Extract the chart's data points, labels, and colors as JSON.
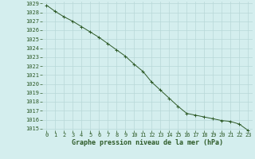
{
  "x": [
    0,
    1,
    2,
    3,
    4,
    5,
    6,
    7,
    8,
    9,
    10,
    11,
    12,
    13,
    14,
    15,
    16,
    17,
    18,
    19,
    20,
    21,
    22,
    23
  ],
  "y": [
    1028.8,
    1028.1,
    1027.5,
    1027.0,
    1026.4,
    1025.8,
    1025.2,
    1024.5,
    1023.8,
    1023.1,
    1022.2,
    1021.4,
    1020.2,
    1019.3,
    1018.4,
    1017.5,
    1016.7,
    1016.5,
    1016.3,
    1016.1,
    1015.9,
    1015.8,
    1015.5,
    1014.8
  ],
  "ylim": [
    1015,
    1029
  ],
  "xlim": [
    -0.5,
    23.5
  ],
  "yticks": [
    1015,
    1016,
    1017,
    1018,
    1019,
    1020,
    1021,
    1022,
    1023,
    1024,
    1025,
    1026,
    1027,
    1028,
    1029
  ],
  "xticks": [
    0,
    1,
    2,
    3,
    4,
    5,
    6,
    7,
    8,
    9,
    10,
    11,
    12,
    13,
    14,
    15,
    16,
    17,
    18,
    19,
    20,
    21,
    22,
    23
  ],
  "line_color": "#2d5a27",
  "marker": "+",
  "bg_color": "#d4eeee",
  "grid_color": "#b8d8d8",
  "xlabel": "Graphe pression niveau de la mer (hPa)",
  "xlabel_color": "#2d5a27",
  "tick_color": "#2d5a27",
  "label_fontsize": 6.0,
  "tick_fontsize": 5.0,
  "ytick_fontsize": 5.0
}
